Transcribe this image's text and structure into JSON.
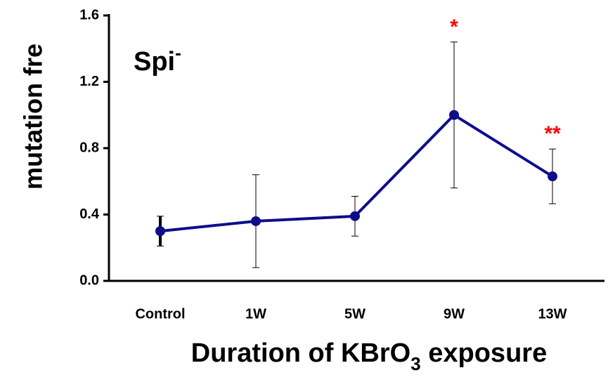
{
  "chart_data": {
    "type": "line",
    "title": {
      "text": "Spi",
      "superscript": "-"
    },
    "ylabel": "mutation fre",
    "xlabel": {
      "text": "Duration of KBrO",
      "subscript": "3",
      "suffix": " exposure"
    },
    "categories": [
      "Control",
      "1W",
      "5W",
      "9W",
      "13W"
    ],
    "values": [
      0.3,
      0.36,
      0.39,
      1.0,
      0.63
    ],
    "errors": [
      0.09,
      0.28,
      0.12,
      0.44,
      0.165
    ],
    "value_annotations": [
      null,
      null,
      null,
      "*",
      "**"
    ],
    "color": "#0d0d8c",
    "annotation_color": "#ff0000",
    "ylim": [
      0,
      1.6
    ],
    "yticks": [
      {
        "value": 0,
        "label": "0.0"
      },
      0.4,
      0.8,
      1.2,
      1.6
    ]
  }
}
